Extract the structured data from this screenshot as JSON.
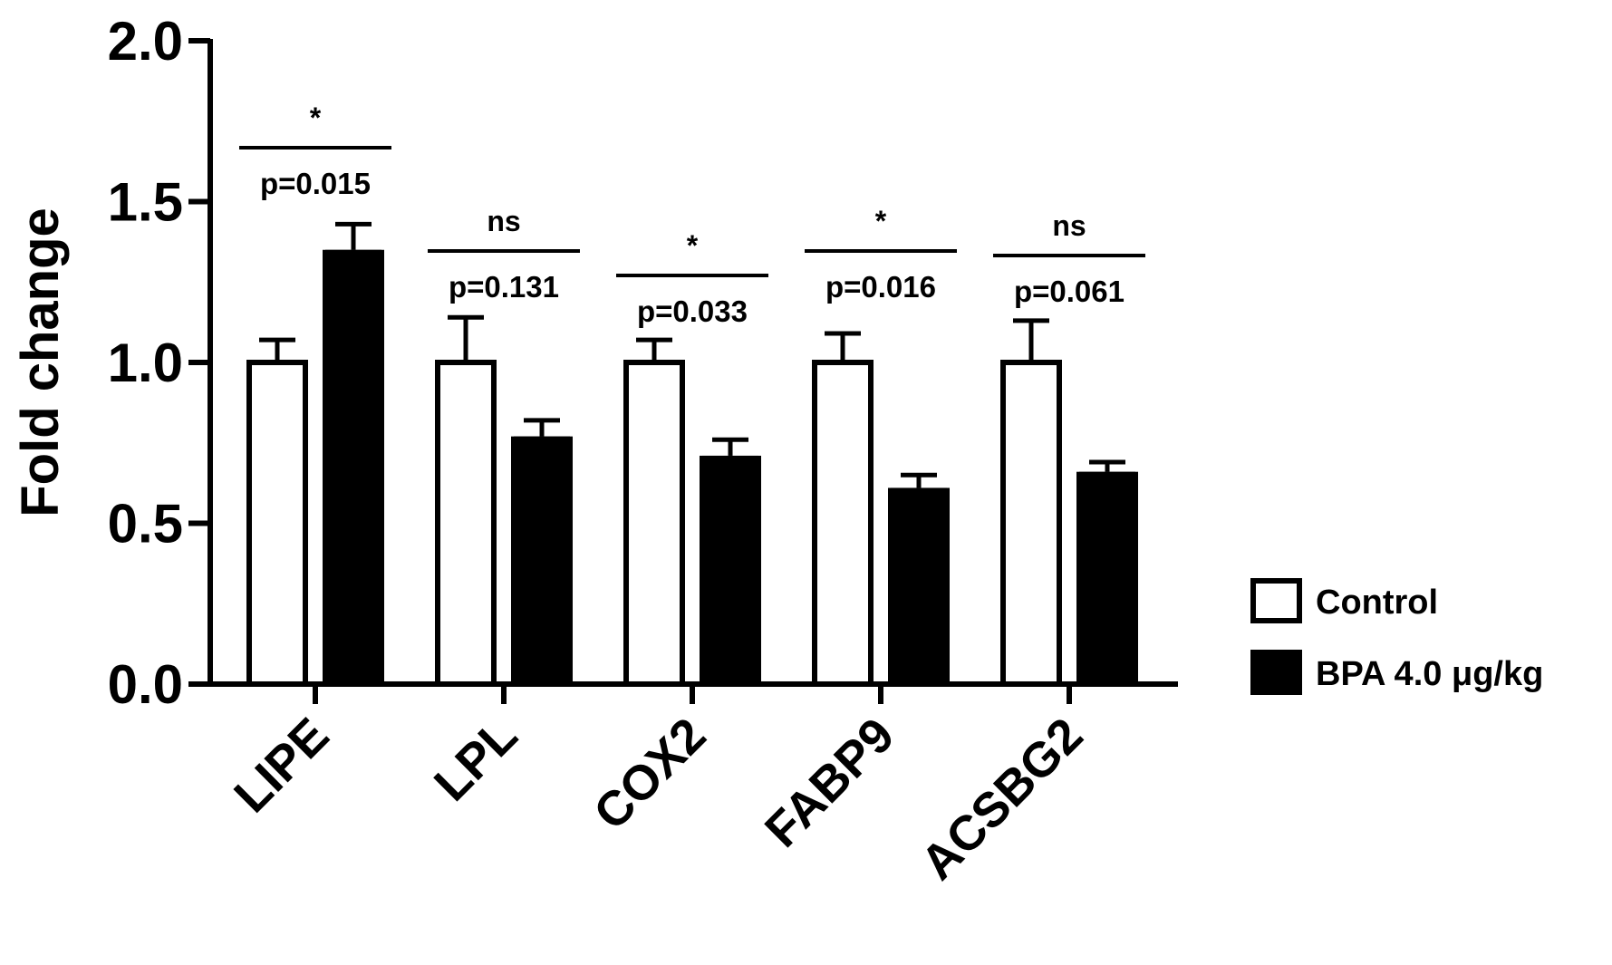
{
  "chart_data": {
    "type": "bar",
    "ylabel": "Fold change",
    "xlabel": "",
    "ylim": [
      0,
      2.0
    ],
    "yticks": [
      "0.0",
      "0.5",
      "1.0",
      "1.5",
      "2.0"
    ],
    "grid": false,
    "legend_position": "right",
    "categories": [
      "LIPE",
      "LPL",
      "COX2",
      "FABP9",
      "ACSBG2"
    ],
    "series": [
      {
        "name": "Control",
        "color": "#ffffff",
        "values": [
          1.0,
          1.0,
          1.0,
          1.0,
          1.0
        ],
        "errors": [
          0.07,
          0.14,
          0.07,
          0.09,
          0.13
        ]
      },
      {
        "name": "BPA 4.0 μg/kg",
        "color": "#000000",
        "values": [
          1.35,
          0.77,
          0.71,
          0.61,
          0.66
        ],
        "errors": [
          0.08,
          0.05,
          0.05,
          0.04,
          0.03
        ]
      }
    ],
    "annotations": [
      {
        "category": "LIPE",
        "significance": "*",
        "pvalue": "p=0.015"
      },
      {
        "category": "LPL",
        "significance": "ns",
        "pvalue": "p=0.131"
      },
      {
        "category": "COX2",
        "significance": "*",
        "pvalue": "p=0.033"
      },
      {
        "category": "FABP9",
        "significance": "*",
        "pvalue": "p=0.016"
      },
      {
        "category": "ACSBG2",
        "significance": "ns",
        "pvalue": "p=0.061"
      }
    ]
  }
}
